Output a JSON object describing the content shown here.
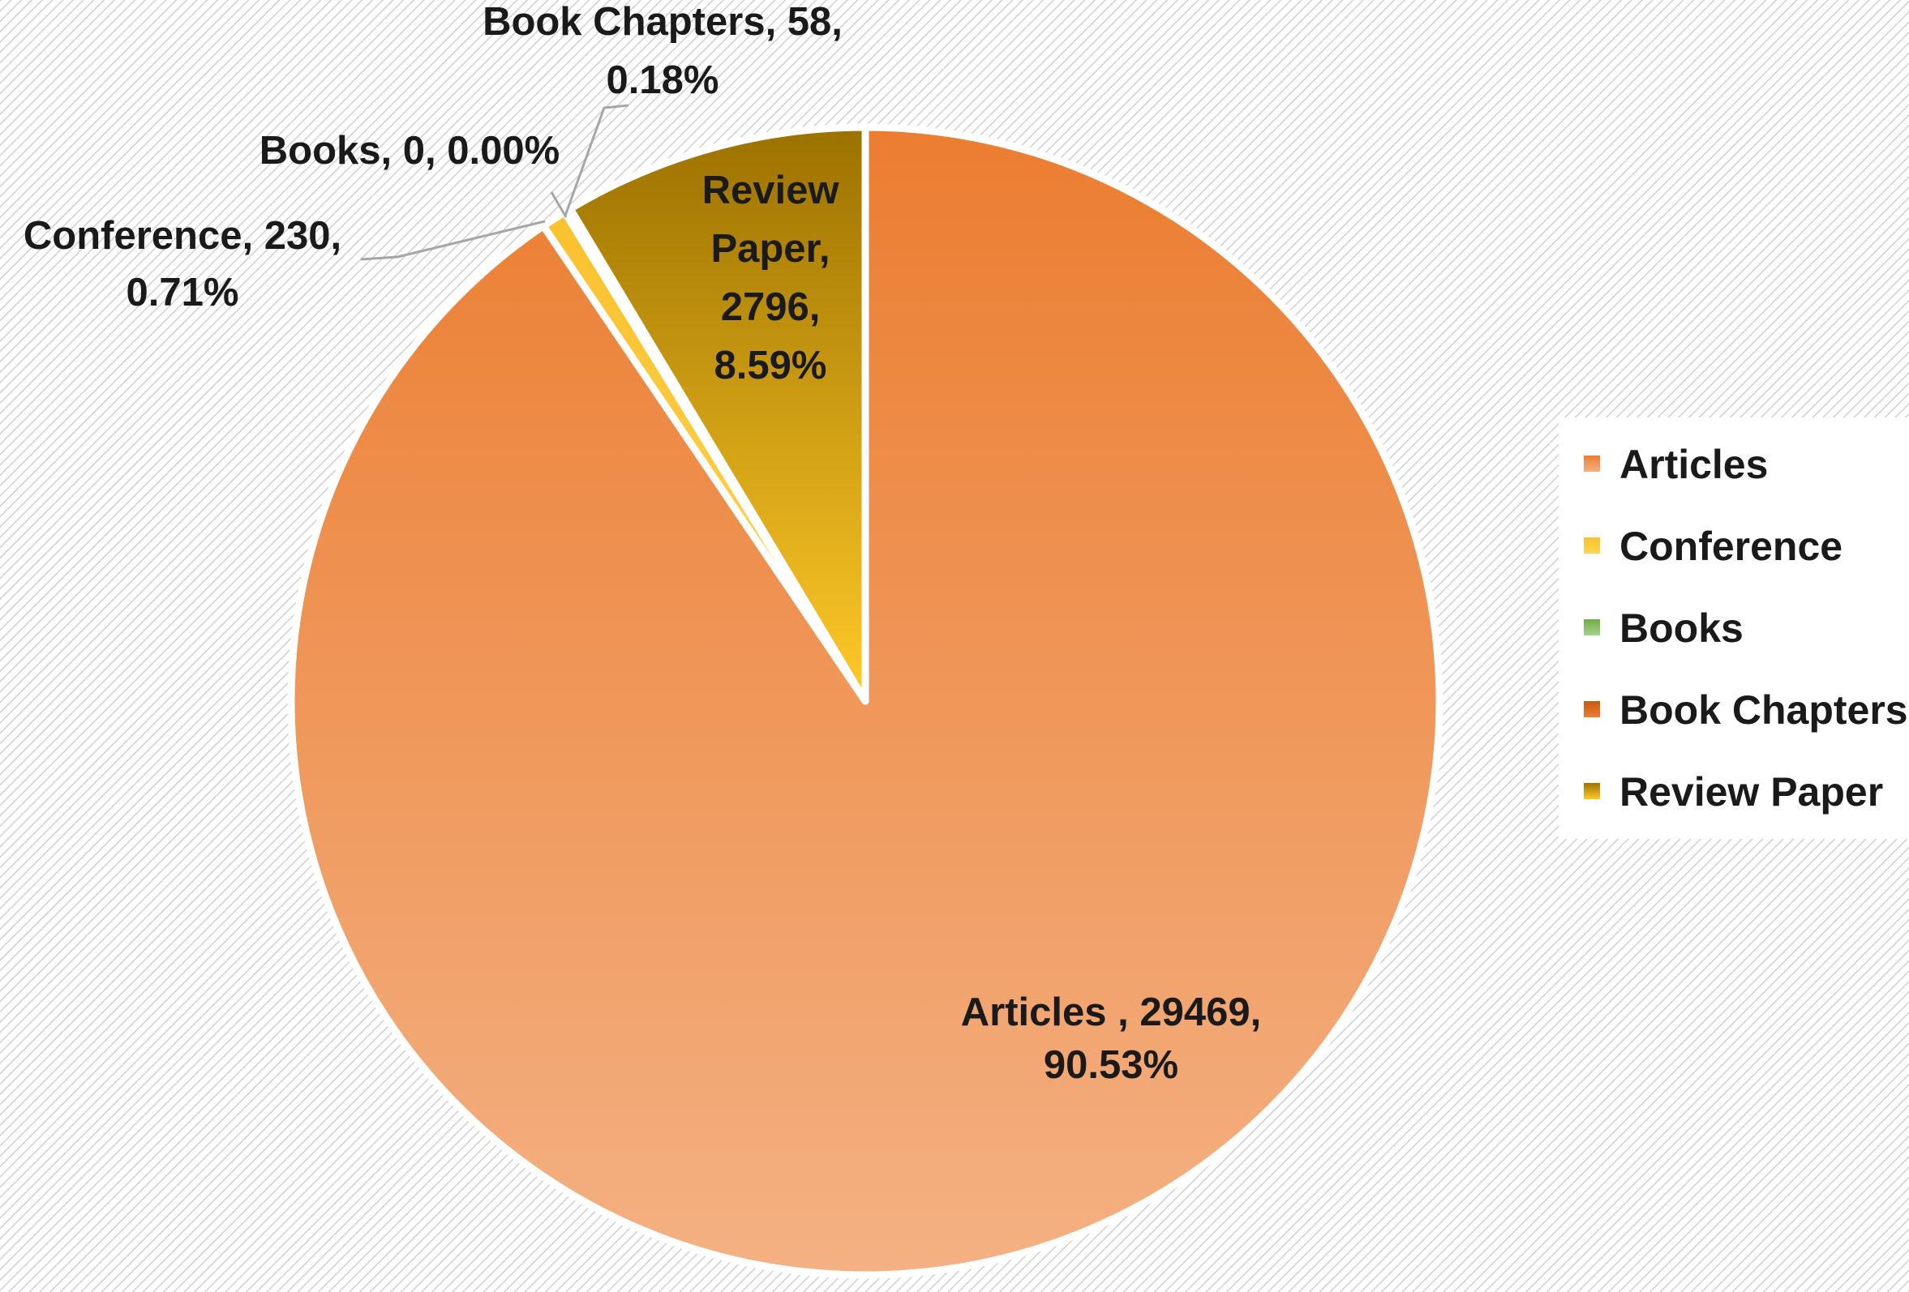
{
  "chart_data": {
    "type": "pie",
    "slices": [
      {
        "name": "Articles",
        "value": 29469,
        "percent": "90.53%",
        "label": [
          "Articles , 29469,",
          "90.53%"
        ],
        "color_top": "#eb7d30",
        "color_bottom": "#f4b183"
      },
      {
        "name": "Conference",
        "value": 230,
        "percent": "0.71%",
        "label": [
          "Conference, 230,",
          "0.71%"
        ],
        "color_top": "#f9c12f",
        "color_bottom": "#ffd54f"
      },
      {
        "name": "Books",
        "value": 0,
        "percent": "0.00%",
        "label": [
          "Books, 0, 0.00%"
        ],
        "color_top": "#70ad47",
        "color_bottom": "#a9d18e"
      },
      {
        "name": "Book Chapters",
        "value": 58,
        "percent": "0.18%",
        "label": [
          "Book Chapters, 58,",
          "0.18%"
        ],
        "color_top": "#c55a11",
        "color_bottom": "#ed7d31"
      },
      {
        "name": "Review Paper",
        "value": 2796,
        "percent": "8.59%",
        "label": [
          "Review",
          "Paper,",
          "2796,",
          "8.59%"
        ],
        "color_top": "#9c7200",
        "color_bottom": "#ffc928"
      }
    ],
    "legend": {
      "placement": "right",
      "entries": [
        "Articles",
        "Conference",
        "Books",
        "Book Chapters",
        "Review Paper"
      ]
    },
    "start_angle": "12 o'clock",
    "direction": "clockwise"
  }
}
